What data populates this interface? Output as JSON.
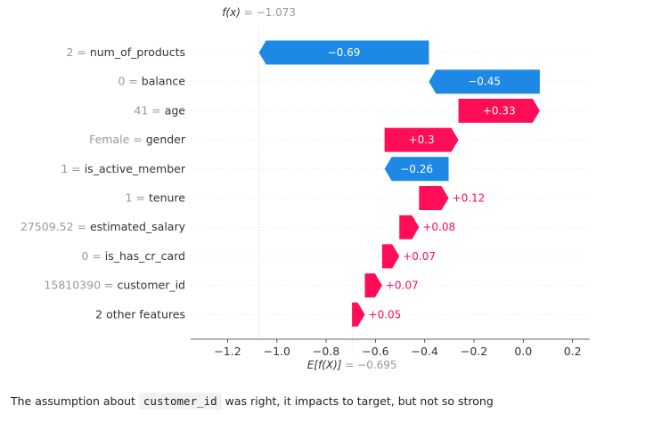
{
  "chart_data": {
    "type": "waterfall",
    "fx_label": "f(x)",
    "fx_value": "= −1.073",
    "fx": -1.073,
    "ex_label": "E[f(X)]",
    "ex_value": "= −0.695",
    "ex": -0.695,
    "xlim": [
      -1.35,
      0.27
    ],
    "ticks": [
      {
        "v": -1.2,
        "label": "−1.2"
      },
      {
        "v": -1.0,
        "label": "−1.0"
      },
      {
        "v": -0.8,
        "label": "−0.8"
      },
      {
        "v": -0.6,
        "label": "−0.6"
      },
      {
        "v": -0.4,
        "label": "−0.4"
      },
      {
        "v": -0.2,
        "label": "−0.2"
      },
      {
        "v": 0.0,
        "label": "0.0"
      },
      {
        "v": 0.2,
        "label": "0.2"
      }
    ],
    "features": [
      {
        "value": "2",
        "name": "num_of_products",
        "start": -0.383,
        "end": -1.073,
        "contrib": -0.69,
        "label": "−0.69"
      },
      {
        "value": "0",
        "name": "balance",
        "start": 0.067,
        "end": -0.383,
        "contrib": -0.45,
        "label": "−0.45"
      },
      {
        "value": "41",
        "name": "age",
        "start": -0.263,
        "end": 0.067,
        "contrib": 0.33,
        "label": "+0.33"
      },
      {
        "value": "Female",
        "name": "gender",
        "start": -0.563,
        "end": -0.263,
        "contrib": 0.3,
        "label": "+0.3"
      },
      {
        "value": "1",
        "name": "is_active_member",
        "start": -0.303,
        "end": -0.563,
        "contrib": -0.26,
        "label": "−0.26"
      },
      {
        "value": "1",
        "name": "tenure",
        "start": -0.423,
        "end": -0.303,
        "contrib": 0.12,
        "label": "+0.12"
      },
      {
        "value": "27509.52",
        "name": "estimated_salary",
        "start": -0.503,
        "end": -0.423,
        "contrib": 0.08,
        "label": "+0.08"
      },
      {
        "value": "0",
        "name": "is_has_cr_card",
        "start": -0.573,
        "end": -0.503,
        "contrib": 0.07,
        "label": "+0.07"
      },
      {
        "value": "15810390",
        "name": "customer_id",
        "start": -0.643,
        "end": -0.573,
        "contrib": 0.07,
        "label": "+0.07"
      },
      {
        "value": "",
        "name": "2 other features",
        "start": -0.695,
        "end": -0.643,
        "contrib": 0.05,
        "label": "+0.05"
      }
    ],
    "colors": {
      "positive": "#ff0d57",
      "negative": "#1e88e5",
      "label_muted": "#999999",
      "text": "#333333"
    }
  },
  "caption": {
    "before": "The assumption about ",
    "code": "customer_id",
    "after": " was right, it impacts to target, but not so strong"
  }
}
